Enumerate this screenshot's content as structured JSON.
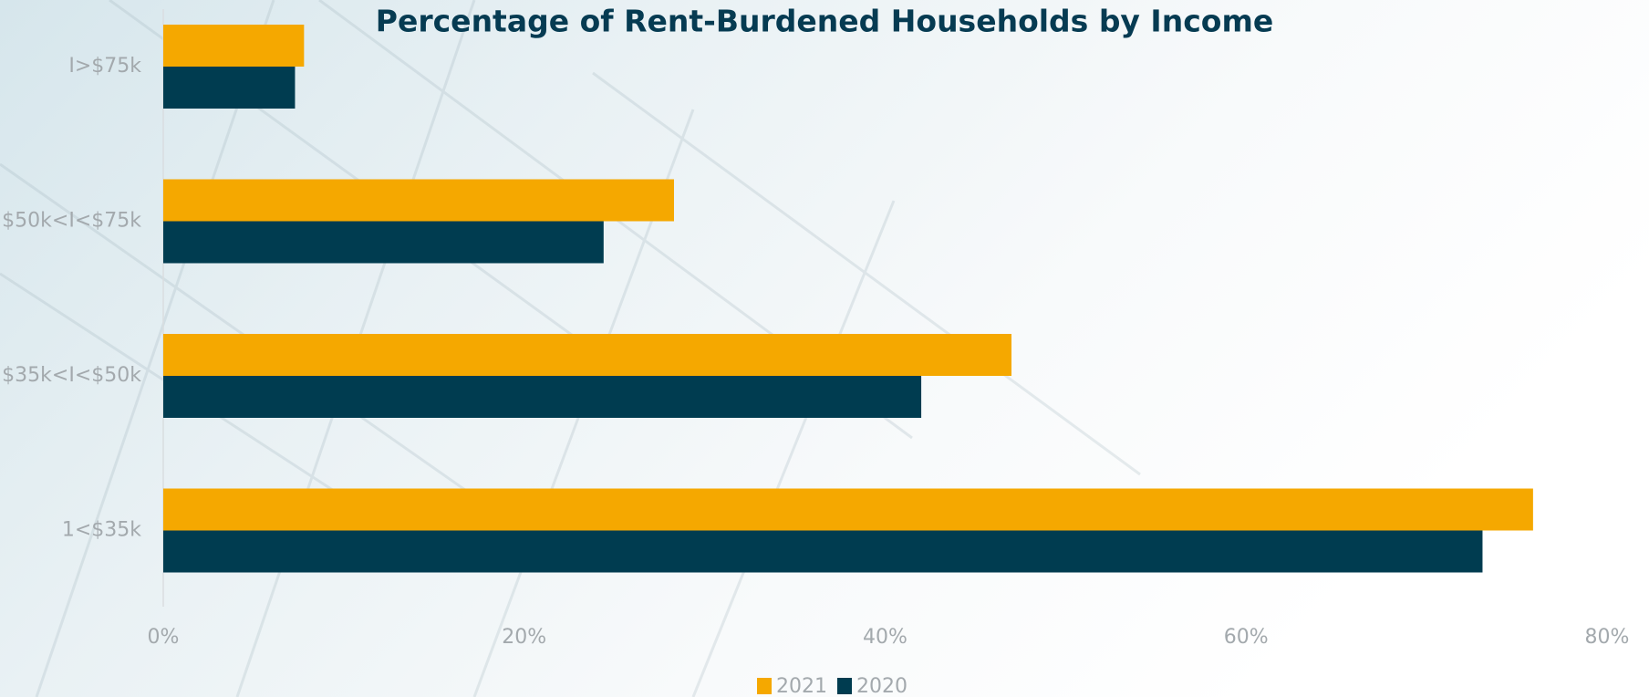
{
  "chart_data": {
    "type": "barh",
    "title": "Percentage of Rent-Burdened Households by Income",
    "categories": [
      "I>$75k",
      "$50k<I<$75k",
      "$35k<I<$50k",
      "1<$35k"
    ],
    "series": [
      {
        "name": "2021",
        "color": "#f5a800",
        "values": [
          7.8,
          28.3,
          47.0,
          75.9
        ]
      },
      {
        "name": "2020",
        "color": "#003c50",
        "values": [
          7.3,
          24.4,
          42.0,
          73.1
        ]
      }
    ],
    "xlim": [
      0,
      80
    ],
    "xticks": [
      {
        "value": 0,
        "label": "0%"
      },
      {
        "value": 20,
        "label": "20%"
      },
      {
        "value": 40,
        "label": "40%"
      },
      {
        "value": 60,
        "label": "60%"
      },
      {
        "value": 80,
        "label": "80%"
      }
    ],
    "grid": false,
    "legend": "bottom"
  }
}
